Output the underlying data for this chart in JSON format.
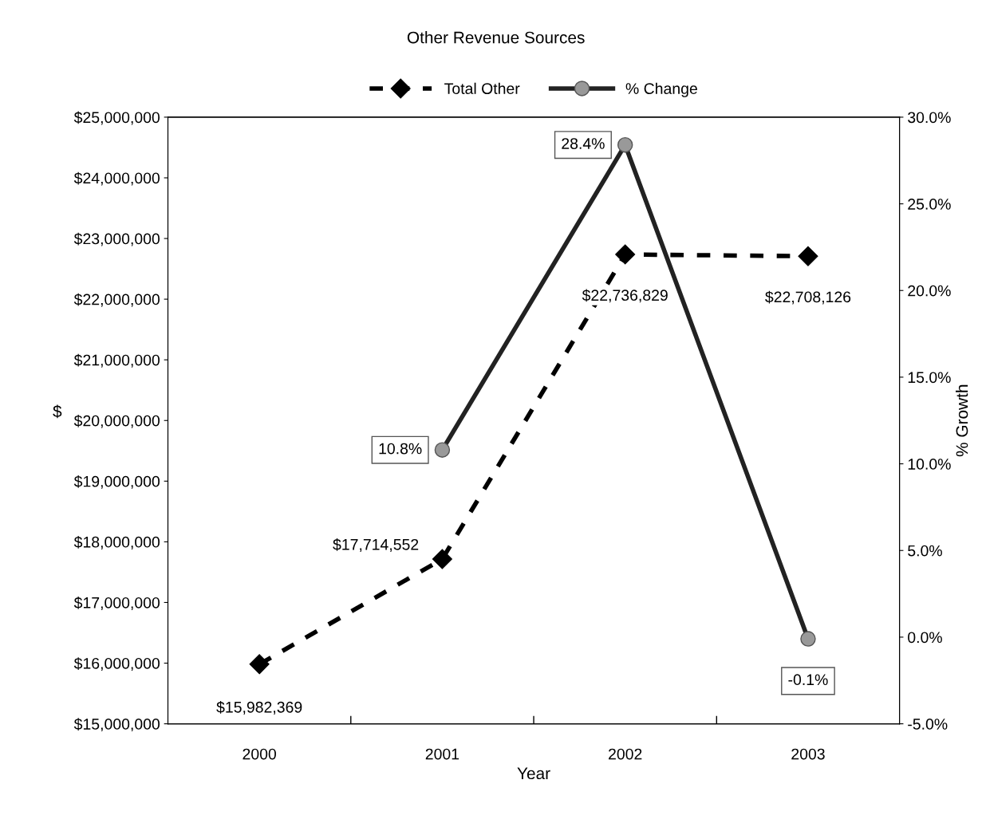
{
  "chart_data": {
    "type": "line",
    "title": "Other Revenue Sources",
    "xlabel": "Year",
    "ylabel": "$",
    "y2label": "% Growth",
    "categories": [
      "2000",
      "2001",
      "2002",
      "2003"
    ],
    "series": [
      {
        "name": "Total Other",
        "color": "#000000",
        "values": [
          15982369,
          17714552,
          22736829,
          22708126
        ],
        "marker": "diamond",
        "line_style": "dashed",
        "value_labels": [
          "$15,982,369",
          "$17,714,552",
          "$22,736,829",
          "$22,708,126"
        ]
      },
      {
        "name": "% Change",
        "color": "#222222",
        "values": [
          null,
          10.8,
          28.4,
          -0.1
        ],
        "axis": "y2",
        "marker": "circle",
        "line_style": "solid",
        "value_labels": [
          null,
          "10.8%",
          "28.4%",
          "-0.1%"
        ]
      }
    ],
    "ylim": [
      15000000,
      25000000
    ],
    "yticks": [
      {
        "value": 15000000,
        "label": "$15,000,000"
      },
      {
        "value": 16000000,
        "label": "$16,000,000"
      },
      {
        "value": 17000000,
        "label": "$17,000,000"
      },
      {
        "value": 18000000,
        "label": "$18,000,000"
      },
      {
        "value": 19000000,
        "label": "$19,000,000"
      },
      {
        "value": 20000000,
        "label": "$20,000,000"
      },
      {
        "value": 21000000,
        "label": "$21,000,000"
      },
      {
        "value": 22000000,
        "label": "$22,000,000"
      },
      {
        "value": 23000000,
        "label": "$23,000,000"
      },
      {
        "value": 24000000,
        "label": "$24,000,000"
      },
      {
        "value": 25000000,
        "label": "$25,000,000"
      }
    ],
    "y2lim": [
      -5,
      30
    ],
    "y2ticks": [
      {
        "value": -5,
        "label": "-5.0%"
      },
      {
        "value": 0,
        "label": "0.0%"
      },
      {
        "value": 5,
        "label": "5.0%"
      },
      {
        "value": 10,
        "label": "10.0%"
      },
      {
        "value": 15,
        "label": "15.0%"
      },
      {
        "value": 20,
        "label": "20.0%"
      },
      {
        "value": 25,
        "label": "25.0%"
      },
      {
        "value": 30,
        "label": "30.0%"
      }
    ],
    "grid": false,
    "legend": "top"
  }
}
